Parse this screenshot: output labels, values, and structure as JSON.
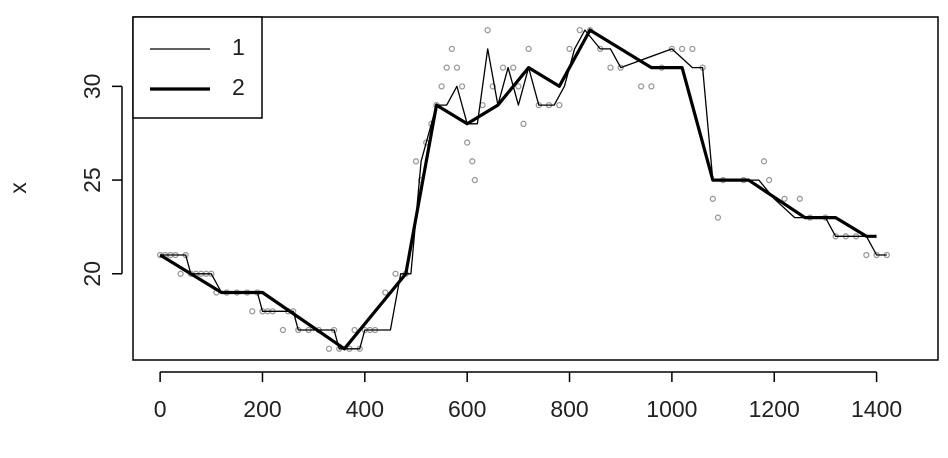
{
  "chart_data": {
    "type": "line",
    "y_label": "x",
    "xlim": [
      -53,
      1520
    ],
    "ylim": [
      15.4,
      33.7
    ],
    "xticks": [
      0,
      200,
      400,
      600,
      800,
      1000,
      1200,
      1400
    ],
    "yticks": [
      20,
      25,
      30
    ],
    "legend": "top-left",
    "points": {
      "color": "#9a9a9a",
      "x": [
        0,
        10,
        20,
        30,
        40,
        50,
        60,
        70,
        80,
        90,
        100,
        110,
        130,
        150,
        170,
        180,
        190,
        200,
        210,
        220,
        240,
        250,
        260,
        270,
        290,
        310,
        330,
        340,
        350,
        370,
        380,
        390,
        400,
        410,
        420,
        440,
        460,
        480,
        500,
        510,
        520,
        530,
        540,
        550,
        560,
        570,
        580,
        590,
        600,
        610,
        615,
        630,
        640,
        650,
        670,
        690,
        700,
        710,
        720,
        740,
        760,
        780,
        800,
        820,
        840,
        860,
        880,
        900,
        940,
        960,
        980,
        1000,
        1020,
        1040,
        1060,
        1080,
        1090,
        1100,
        1140,
        1180,
        1190,
        1220,
        1250,
        1270,
        1300,
        1320,
        1340,
        1360,
        1380,
        1400,
        1420
      ],
      "values": [
        21,
        21,
        21,
        21,
        20,
        21,
        20,
        20,
        20,
        20,
        20,
        19,
        19,
        19,
        19,
        18,
        19,
        18,
        18,
        18,
        17,
        18,
        18,
        17,
        17,
        17,
        16,
        17,
        16,
        16,
        17,
        16,
        17,
        17,
        17,
        19,
        20,
        20,
        26,
        25,
        27,
        28,
        29,
        30,
        31,
        32,
        31,
        30,
        27,
        26,
        25,
        29,
        33,
        30,
        31,
        31,
        30,
        28,
        32,
        29,
        29,
        29,
        32,
        33,
        33,
        32,
        31,
        31,
        30,
        30,
        31,
        32,
        32,
        32,
        31,
        24,
        23,
        25,
        25,
        26,
        25,
        24,
        24,
        23,
        23,
        22,
        22,
        22,
        21,
        21,
        21
      ]
    },
    "series": [
      {
        "name": "1",
        "color": "#000000",
        "width": 1.3,
        "x": [
          0,
          50,
          60,
          100,
          120,
          190,
          200,
          260,
          270,
          340,
          350,
          390,
          400,
          450,
          470,
          490,
          510,
          530,
          540,
          560,
          580,
          600,
          620,
          640,
          660,
          680,
          700,
          720,
          740,
          770,
          790,
          810,
          830,
          860,
          880,
          900,
          1000,
          1040,
          1060,
          1080,
          1170,
          1200,
          1240,
          1300,
          1320,
          1380,
          1400,
          1420
        ],
        "values": [
          21,
          21,
          20,
          20,
          19,
          19,
          18,
          18,
          17,
          17,
          16,
          16,
          17,
          17,
          20,
          20,
          26,
          28,
          29,
          29,
          30,
          28,
          28,
          32,
          29,
          31,
          29,
          31,
          29,
          29,
          30,
          32,
          33,
          32,
          32,
          31,
          32,
          31,
          31,
          25,
          25,
          24,
          23,
          23,
          22,
          22,
          21,
          21
        ]
      },
      {
        "name": "2",
        "color": "#000000",
        "width": 3.2,
        "x": [
          0,
          120,
          200,
          360,
          480,
          540,
          600,
          660,
          720,
          780,
          840,
          900,
          960,
          1020,
          1080,
          1150,
          1260,
          1320,
          1380,
          1400
        ],
        "values": [
          21,
          19,
          19,
          16,
          20,
          29,
          28,
          29,
          31,
          30,
          33,
          32,
          31,
          31,
          25,
          25,
          23,
          23,
          22,
          22
        ]
      }
    ]
  }
}
